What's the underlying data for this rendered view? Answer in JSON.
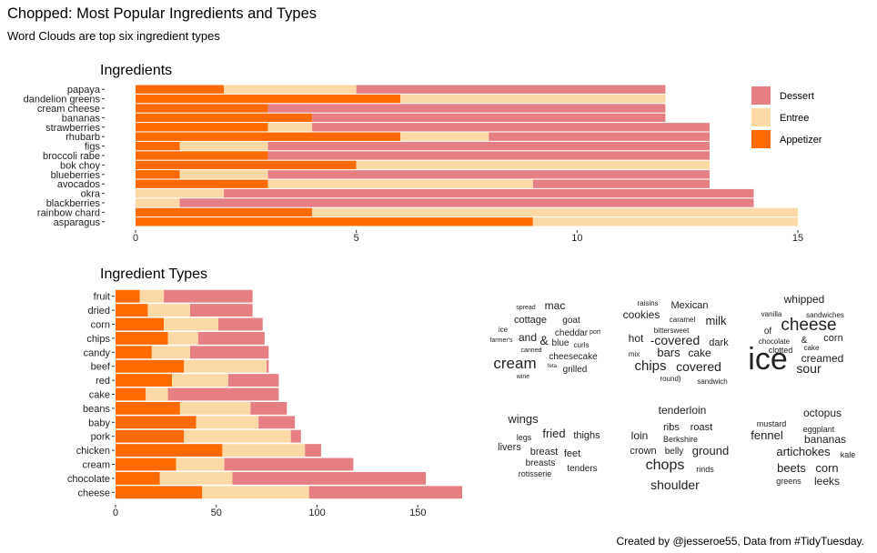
{
  "title": "Chopped: Most Popular Ingredients and Types",
  "subtitle": "Word Clouds are top six ingredient types",
  "credit": "Created by @jesseroe55, Data from #TidyTuesday.",
  "colors": {
    "Dessert": "#e67f83",
    "Entree": "#fdd9a5",
    "Appetizer": "#ff6a00",
    "axis": "#333333"
  },
  "chart_data": [
    {
      "type": "bar",
      "orientation": "horizontal",
      "stacked": true,
      "title": "Ingredients",
      "categories": [
        "papaya",
        "dandelion greens",
        "cream cheese",
        "bananas",
        "strawberries",
        "rhubarb",
        "figs",
        "broccoli rabe",
        "bok choy",
        "blueberries",
        "avocados",
        "okra",
        "blackberries",
        "rainbow chard",
        "asparagus"
      ],
      "series": [
        {
          "name": "Appetizer",
          "values": [
            2,
            6,
            3,
            4,
            3,
            6,
            1,
            3,
            5,
            1,
            3,
            0,
            0,
            4,
            9
          ]
        },
        {
          "name": "Entree",
          "values": [
            3,
            6,
            0,
            0,
            1,
            2,
            2,
            0,
            8,
            2,
            6,
            2,
            1,
            11,
            6
          ]
        },
        {
          "name": "Dessert",
          "values": [
            7,
            0,
            9,
            8,
            9,
            5,
            10,
            10,
            0,
            10,
            4,
            12,
            13,
            0,
            0
          ]
        }
      ],
      "xticks": [
        "0",
        "5",
        "10",
        "15"
      ],
      "xlim": [
        0,
        15.7
      ],
      "legend": {
        "position": "right",
        "entries": [
          "Dessert",
          "Entree",
          "Appetizer"
        ]
      }
    },
    {
      "type": "bar",
      "orientation": "horizontal",
      "stacked": true,
      "title": "Ingredient Types",
      "categories": [
        "fruit",
        "dried",
        "corn",
        "chips",
        "candy",
        "beef",
        "red",
        "cake",
        "beans",
        "baby",
        "pork",
        "chicken",
        "cream",
        "chocolate",
        "cheese"
      ],
      "series": [
        {
          "name": "Appetizer",
          "values": [
            12,
            16,
            24,
            26,
            18,
            34,
            28,
            15,
            32,
            40,
            34,
            53,
            30,
            22,
            43
          ]
        },
        {
          "name": "Entree",
          "values": [
            12,
            21,
            27,
            15,
            19,
            41,
            28,
            11,
            35,
            31,
            53,
            41,
            24,
            36,
            53
          ]
        },
        {
          "name": "Dessert",
          "values": [
            44,
            31,
            22,
            33,
            39,
            1,
            25,
            55,
            18,
            18,
            5,
            8,
            64,
            96,
            76
          ]
        }
      ],
      "xticks": [
        "0",
        "50",
        "100",
        "150"
      ],
      "xlim": [
        0,
        172
      ]
    },
    {
      "type": "wordcloud",
      "clouds": [
        {
          "words": [
            {
              "w": "mac",
              "s": 12
            },
            {
              "w": "spread",
              "s": 7
            },
            {
              "w": "cottage",
              "s": 11
            },
            {
              "w": "goat",
              "s": 10
            },
            {
              "w": "ice",
              "s": 8
            },
            {
              "w": "cheddar",
              "s": 10
            },
            {
              "w": "port",
              "s": 7
            },
            {
              "w": "farmer's",
              "s": 7
            },
            {
              "w": "and",
              "s": 12
            },
            {
              "w": "&",
              "s": 14
            },
            {
              "w": "blue",
              "s": 10
            },
            {
              "w": "curls",
              "s": 8
            },
            {
              "w": "canned",
              "s": 7
            },
            {
              "w": "cheesecake",
              "s": 10
            },
            {
              "w": "cream",
              "s": 17
            },
            {
              "w": "feta",
              "s": 6
            },
            {
              "w": "grilled",
              "s": 10
            },
            {
              "w": "wine",
              "s": 7
            }
          ]
        },
        {
          "words": [
            {
              "w": "raisins",
              "s": 8
            },
            {
              "w": "Mexican",
              "s": 11
            },
            {
              "w": "cookies",
              "s": 12
            },
            {
              "w": "caramel",
              "s": 8
            },
            {
              "w": "milk",
              "s": 13
            },
            {
              "w": "bittersweet",
              "s": 8
            },
            {
              "w": "hot",
              "s": 12
            },
            {
              "w": "-covered",
              "s": 14
            },
            {
              "w": "dark",
              "s": 11
            },
            {
              "w": "mix",
              "s": 8
            },
            {
              "w": "bars",
              "s": 13
            },
            {
              "w": "cake",
              "s": 12
            },
            {
              "w": "chips",
              "s": 15
            },
            {
              "w": "covered",
              "s": 14
            },
            {
              "w": "round)",
              "s": 8
            },
            {
              "w": "sandwich",
              "s": 8
            }
          ]
        },
        {
          "words": [
            {
              "w": "whipped",
              "s": 12
            },
            {
              "w": "vanilla",
              "s": 8
            },
            {
              "w": "sandwiches",
              "s": 8
            },
            {
              "w": "cheese",
              "s": 19
            },
            {
              "w": "of",
              "s": 10
            },
            {
              "w": "chocolate",
              "s": 8
            },
            {
              "w": "&",
              "s": 10
            },
            {
              "w": "corn",
              "s": 11
            },
            {
              "w": "clotted",
              "s": 9
            },
            {
              "w": "cake",
              "s": 8
            },
            {
              "w": "ice",
              "s": 34
            },
            {
              "w": "creamed",
              "s": 12
            },
            {
              "w": "sour",
              "s": 14
            }
          ]
        },
        {
          "words": [
            {
              "w": "wings",
              "s": 13
            },
            {
              "w": "legs",
              "s": 9
            },
            {
              "w": "fried",
              "s": 13
            },
            {
              "w": "thighs",
              "s": 11
            },
            {
              "w": "livers",
              "s": 11
            },
            {
              "w": "breast",
              "s": 11
            },
            {
              "w": "feet",
              "s": 11
            },
            {
              "w": "breasts",
              "s": 10
            },
            {
              "w": "tenders",
              "s": 10
            },
            {
              "w": "rotisserie",
              "s": 9
            }
          ]
        },
        {
          "words": [
            {
              "w": "tenderloin",
              "s": 12
            },
            {
              "w": "ribs",
              "s": 11
            },
            {
              "w": "roast",
              "s": 11
            },
            {
              "w": "loin",
              "s": 12
            },
            {
              "w": "Berkshire",
              "s": 9
            },
            {
              "w": "crown",
              "s": 11
            },
            {
              "w": "belly",
              "s": 10
            },
            {
              "w": "ground",
              "s": 13
            },
            {
              "w": "chops",
              "s": 16
            },
            {
              "w": "rinds",
              "s": 9
            },
            {
              "w": "shoulder",
              "s": 14
            }
          ]
        },
        {
          "words": [
            {
              "w": "octopus",
              "s": 12
            },
            {
              "w": "mustard",
              "s": 9
            },
            {
              "w": "eggplant",
              "s": 9
            },
            {
              "w": "fennel",
              "s": 13
            },
            {
              "w": "bananas",
              "s": 12
            },
            {
              "w": "artichokes",
              "s": 13
            },
            {
              "w": "kale",
              "s": 9
            },
            {
              "w": "beets",
              "s": 13
            },
            {
              "w": "corn",
              "s": 13
            },
            {
              "w": "greens",
              "s": 9
            },
            {
              "w": "leeks",
              "s": 12
            }
          ]
        }
      ]
    }
  ]
}
